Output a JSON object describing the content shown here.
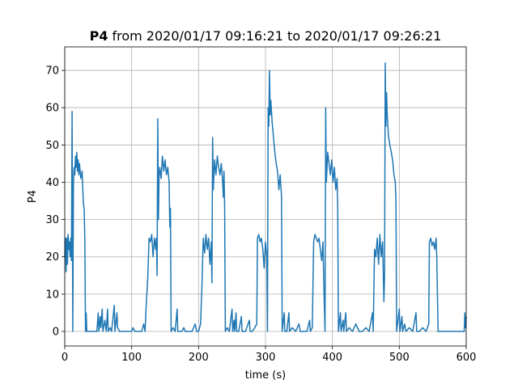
{
  "chart_data": {
    "type": "line",
    "title": [
      "P4",
      "from 2020/01/17 09:16:21 to 2020/01/17 09:26:21"
    ],
    "xlabel": "time (s)",
    "ylabel": "P4",
    "xlim": [
      0,
      600
    ],
    "xticks": [
      0,
      100,
      200,
      300,
      400,
      500,
      600
    ],
    "ylim": [
      -3.9,
      76.3
    ],
    "yticks": [
      0,
      10,
      20,
      30,
      40,
      50,
      60,
      70
    ],
    "grid": true,
    "color": "#1f77b4",
    "x": [
      0,
      1,
      2,
      3,
      4,
      5,
      6,
      7,
      8,
      9,
      10,
      11,
      12,
      13,
      14,
      15,
      16,
      17,
      18,
      19,
      20,
      21,
      22,
      24,
      26,
      27,
      28,
      29,
      30,
      31,
      32,
      33,
      35,
      40,
      48,
      50,
      51,
      53,
      54,
      56,
      57,
      60,
      62,
      64,
      65,
      68,
      70,
      74,
      75,
      78,
      79,
      82,
      90,
      95,
      100,
      102,
      105,
      110,
      115,
      118,
      120,
      122,
      124,
      126,
      128,
      130,
      132,
      134,
      136,
      137,
      138,
      139,
      140,
      141,
      142,
      144,
      146,
      148,
      150,
      152,
      154,
      156,
      157,
      158,
      159,
      162,
      165,
      168,
      169,
      175,
      178,
      180,
      190,
      195,
      197,
      200,
      203,
      205,
      207,
      209,
      211,
      213,
      215,
      217,
      219,
      220,
      221,
      222,
      224,
      226,
      228,
      230,
      232,
      234,
      236,
      237,
      238,
      239,
      240,
      243,
      246,
      250,
      251,
      253,
      254,
      256,
      257,
      260,
      264,
      265,
      270,
      276,
      277,
      280,
      284,
      287,
      288,
      290,
      292,
      294,
      296,
      298,
      300,
      302,
      303,
      304,
      305,
      306,
      307,
      308,
      310,
      312,
      314,
      316,
      318,
      320,
      322,
      324,
      325,
      328,
      329,
      332,
      335,
      336,
      340,
      345,
      350,
      352,
      358,
      362,
      366,
      367,
      370,
      372,
      374,
      376,
      378,
      380,
      382,
      384,
      386,
      387,
      389,
      390,
      391,
      393,
      395,
      397,
      399,
      401,
      403,
      405,
      407,
      408,
      409,
      412,
      413,
      416,
      417,
      420,
      421,
      425,
      430,
      435,
      440,
      445,
      450,
      455,
      460,
      461,
      463,
      465,
      467,
      469,
      471,
      473,
      475,
      477,
      478,
      479,
      480,
      481,
      482,
      484,
      486,
      488,
      490,
      492,
      494,
      495,
      496,
      500,
      501,
      504,
      505,
      508,
      510,
      515,
      520,
      525,
      526,
      530,
      535,
      540,
      544,
      545,
      547,
      549,
      551,
      553,
      555,
      556,
      558,
      565,
      570,
      580,
      590,
      597,
      598,
      599,
      600
    ],
    "values": [
      20,
      25,
      16,
      25,
      18,
      26,
      22,
      24,
      20,
      25,
      19,
      59,
      0,
      40,
      44,
      42,
      47,
      44,
      48,
      43,
      46,
      42,
      45,
      41,
      43,
      38,
      34,
      33,
      25,
      0,
      5,
      0,
      0,
      0,
      0,
      5,
      0,
      4,
      1,
      6,
      0,
      3,
      0,
      6,
      0,
      1,
      0,
      7,
      0,
      5,
      1,
      0,
      0,
      0,
      0,
      1,
      0,
      0,
      0,
      2,
      0,
      8,
      14,
      25,
      24,
      26,
      20,
      25,
      22,
      25,
      15,
      57,
      30,
      42,
      44,
      41,
      47,
      43,
      46,
      42,
      44,
      40,
      28,
      33,
      0,
      1,
      0,
      6,
      0,
      0,
      1,
      0,
      0,
      2,
      0,
      0,
      2,
      12,
      25,
      21,
      26,
      22,
      25,
      18,
      24,
      13,
      52,
      38,
      46,
      42,
      47,
      44,
      42,
      45,
      40,
      36,
      43,
      33,
      0,
      1,
      0,
      6,
      0,
      3,
      0,
      5,
      0,
      0,
      4,
      0,
      0,
      3,
      0,
      0,
      1,
      2,
      25,
      26,
      24,
      25,
      22,
      17,
      24,
      20,
      0,
      60,
      55,
      70,
      58,
      62,
      56,
      52,
      48,
      45,
      43,
      38,
      42,
      36,
      0,
      5,
      0,
      0,
      5,
      0,
      1,
      0,
      2,
      0,
      0,
      0,
      3,
      0,
      1,
      24,
      26,
      25,
      24,
      25,
      22,
      19,
      24,
      14,
      0,
      60,
      40,
      48,
      45,
      42,
      46,
      40,
      44,
      38,
      41,
      33,
      0,
      5,
      0,
      3,
      0,
      5,
      0,
      1,
      0,
      2,
      0,
      0,
      1,
      0,
      5,
      0,
      22,
      20,
      25,
      18,
      26,
      20,
      24,
      8,
      15,
      72,
      55,
      64,
      58,
      52,
      50,
      48,
      46,
      42,
      40,
      35,
      0,
      6,
      0,
      4,
      0,
      2,
      0,
      1,
      0,
      5,
      0,
      0,
      1,
      0,
      2,
      24,
      25,
      23,
      24,
      22,
      25,
      20,
      0,
      0,
      0,
      0,
      0,
      0,
      5,
      1,
      4
    ]
  }
}
